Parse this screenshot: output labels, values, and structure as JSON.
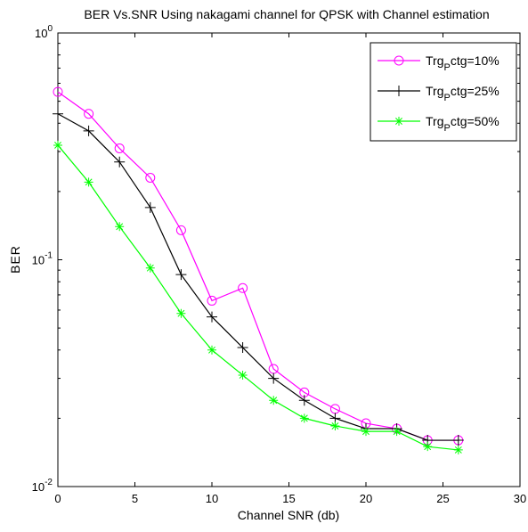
{
  "chart_data": {
    "type": "line",
    "title": "BER Vs.SNR Using nakagami channel for QPSK with Channel estimation",
    "xlabel": "Channel SNR (db)",
    "ylabel": "BER",
    "xlim": [
      0,
      30
    ],
    "ylim": [
      0.01,
      1
    ],
    "yscale": "log",
    "grid": false,
    "legend_position": "top-right",
    "x_ticks": [
      0,
      5,
      10,
      15,
      20,
      25,
      30
    ],
    "y_ticks": [
      {
        "value": 0.01,
        "base": "10",
        "exp": "-2"
      },
      {
        "value": 0.1,
        "base": "10",
        "exp": "-1"
      },
      {
        "value": 1,
        "base": "10",
        "exp": "0"
      }
    ],
    "x": [
      0,
      2,
      4,
      6,
      8,
      10,
      12,
      14,
      16,
      18,
      20,
      22,
      24,
      26
    ],
    "series": [
      {
        "name": "Trg_Pctg=10%",
        "legend": {
          "pre": "Trg",
          "sub": "P",
          "post": "ctg=10%"
        },
        "color": "#ff00ff",
        "marker": "circle",
        "values": [
          0.55,
          0.44,
          0.31,
          0.23,
          0.135,
          0.066,
          0.075,
          0.033,
          0.026,
          0.022,
          0.019,
          0.018,
          0.016,
          0.016
        ]
      },
      {
        "name": "Trg_Pctg=25%",
        "legend": {
          "pre": "Trg",
          "sub": "P",
          "post": "ctg=25%"
        },
        "color": "#000000",
        "marker": "plus",
        "values": [
          0.44,
          0.37,
          0.27,
          0.17,
          0.086,
          0.056,
          0.041,
          0.03,
          0.024,
          0.02,
          0.018,
          0.018,
          0.016,
          0.016
        ]
      },
      {
        "name": "Trg_Pctg=50%",
        "legend": {
          "pre": "Trg",
          "sub": "P",
          "post": "ctg=50%"
        },
        "color": "#00ff00",
        "marker": "star",
        "values": [
          0.32,
          0.22,
          0.14,
          0.092,
          0.058,
          0.04,
          0.031,
          0.024,
          0.02,
          0.0185,
          0.0175,
          0.0175,
          0.015,
          0.0145
        ]
      }
    ]
  }
}
